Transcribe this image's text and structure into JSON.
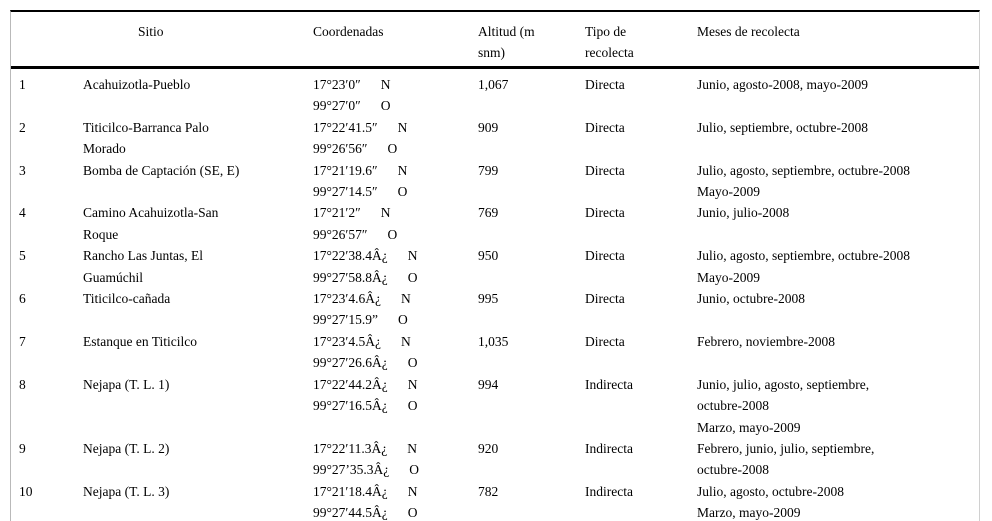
{
  "colors": {
    "background": "#ffffff",
    "text": "#000000",
    "heavy_rule": "#000000",
    "side_rule": "#b9b9b9"
  },
  "table": {
    "columns": {
      "num": "",
      "sitio": "Sitio",
      "coordenadas": "Coordenadas",
      "altitud": "Altitud (m\nsnm)",
      "tipo": "Tipo de\nrecolecta",
      "meses": "Meses de recolecta"
    },
    "rows": [
      {
        "num": "1",
        "sitio": [
          "Acahuizotla-Pueblo"
        ],
        "coordinates": [
          {
            "value": "17°23′0″",
            "dir": "N"
          },
          {
            "value": "99°27′0″",
            "dir": "O"
          }
        ],
        "altitud": "1,067",
        "tipo": "Directa",
        "meses": [
          "Junio, agosto-2008, mayo-2009"
        ]
      },
      {
        "num": "2",
        "sitio": [
          "Titicilco-Barranca Palo",
          "Morado"
        ],
        "coordinates": [
          {
            "value": "17°22′41.5″",
            "dir": "N"
          },
          {
            "value": "99°26′56″",
            "dir": "O"
          }
        ],
        "altitud": "909",
        "tipo": "Directa",
        "meses": [
          "Julio, septiembre, octubre-2008"
        ]
      },
      {
        "num": "3",
        "sitio": [
          "Bomba de Captación (SE, E)"
        ],
        "coordinates": [
          {
            "value": "17°21′19.6″",
            "dir": "N"
          },
          {
            "value": "99°27′14.5″",
            "dir": "O"
          }
        ],
        "altitud": "799",
        "tipo": "Directa",
        "meses": [
          "Julio, agosto, septiembre, octubre-2008",
          "Mayo-2009"
        ]
      },
      {
        "num": "4",
        "sitio": [
          "Camino Acahuizotla-San",
          "Roque"
        ],
        "coordinates": [
          {
            "value": "17°21′2″",
            "dir": "N"
          },
          {
            "value": "99°26′57″",
            "dir": "O"
          }
        ],
        "altitud": "769",
        "tipo": "Directa",
        "meses": [
          "Junio, julio-2008"
        ]
      },
      {
        "num": "5",
        "sitio": [
          "Rancho Las Juntas, El",
          "Guamúchil"
        ],
        "coordinates": [
          {
            "value": "17°22′38.4Â¿",
            "dir": "N"
          },
          {
            "value": "99°27′58.8Â¿",
            "dir": "O"
          }
        ],
        "altitud": "950",
        "tipo": "Directa",
        "meses": [
          "Julio, agosto, septiembre, octubre-2008",
          "Mayo-2009"
        ]
      },
      {
        "num": "6",
        "sitio": [
          "Titicilco-cañada"
        ],
        "coordinates": [
          {
            "value": "17°23′4.6Â¿",
            "dir": "N"
          },
          {
            "value": "99°27′15.9”",
            "dir": "O"
          }
        ],
        "altitud": "995",
        "tipo": "Directa",
        "meses": [
          "Junio, octubre-2008"
        ]
      },
      {
        "num": "7",
        "sitio": [
          "Estanque en Titicilco"
        ],
        "coordinates": [
          {
            "value": "17°23′4.5Â¿",
            "dir": "N"
          },
          {
            "value": "99°27′26.6Â¿",
            "dir": "O"
          }
        ],
        "altitud": "1,035",
        "tipo": "Directa",
        "meses": [
          "Febrero, noviembre-2008"
        ]
      },
      {
        "num": "8",
        "sitio": [
          "Nejapa (T. L. 1)"
        ],
        "coordinates": [
          {
            "value": "17°22′44.2Â¿",
            "dir": "N"
          },
          {
            "value": "99°27′16.5Â¿",
            "dir": "O"
          }
        ],
        "altitud": "994",
        "tipo": "Indirecta",
        "meses": [
          "Junio, julio, agosto, septiembre,",
          "octubre-2008",
          "Marzo, mayo-2009"
        ]
      },
      {
        "num": "9",
        "sitio": [
          "Nejapa (T. L. 2)"
        ],
        "coordinates": [
          {
            "value": "17°22′11.3Â¿",
            "dir": "N"
          },
          {
            "value": "99°27’35.3Â¿",
            "dir": "O"
          }
        ],
        "altitud": "920",
        "tipo": "Indirecta",
        "meses": [
          "Febrero, junio, julio, septiembre,",
          "octubre-2008"
        ]
      },
      {
        "num": "10",
        "sitio": [
          "Nejapa (T. L. 3)"
        ],
        "coordinates": [
          {
            "value": "17°21′18.4Â¿",
            "dir": "N"
          },
          {
            "value": "99°27′44.5Â¿",
            "dir": "O"
          }
        ],
        "altitud": "782",
        "tipo": "Indirecta",
        "meses": [
          "Julio, agosto, octubre-2008",
          "Marzo, mayo-2009"
        ]
      }
    ]
  }
}
